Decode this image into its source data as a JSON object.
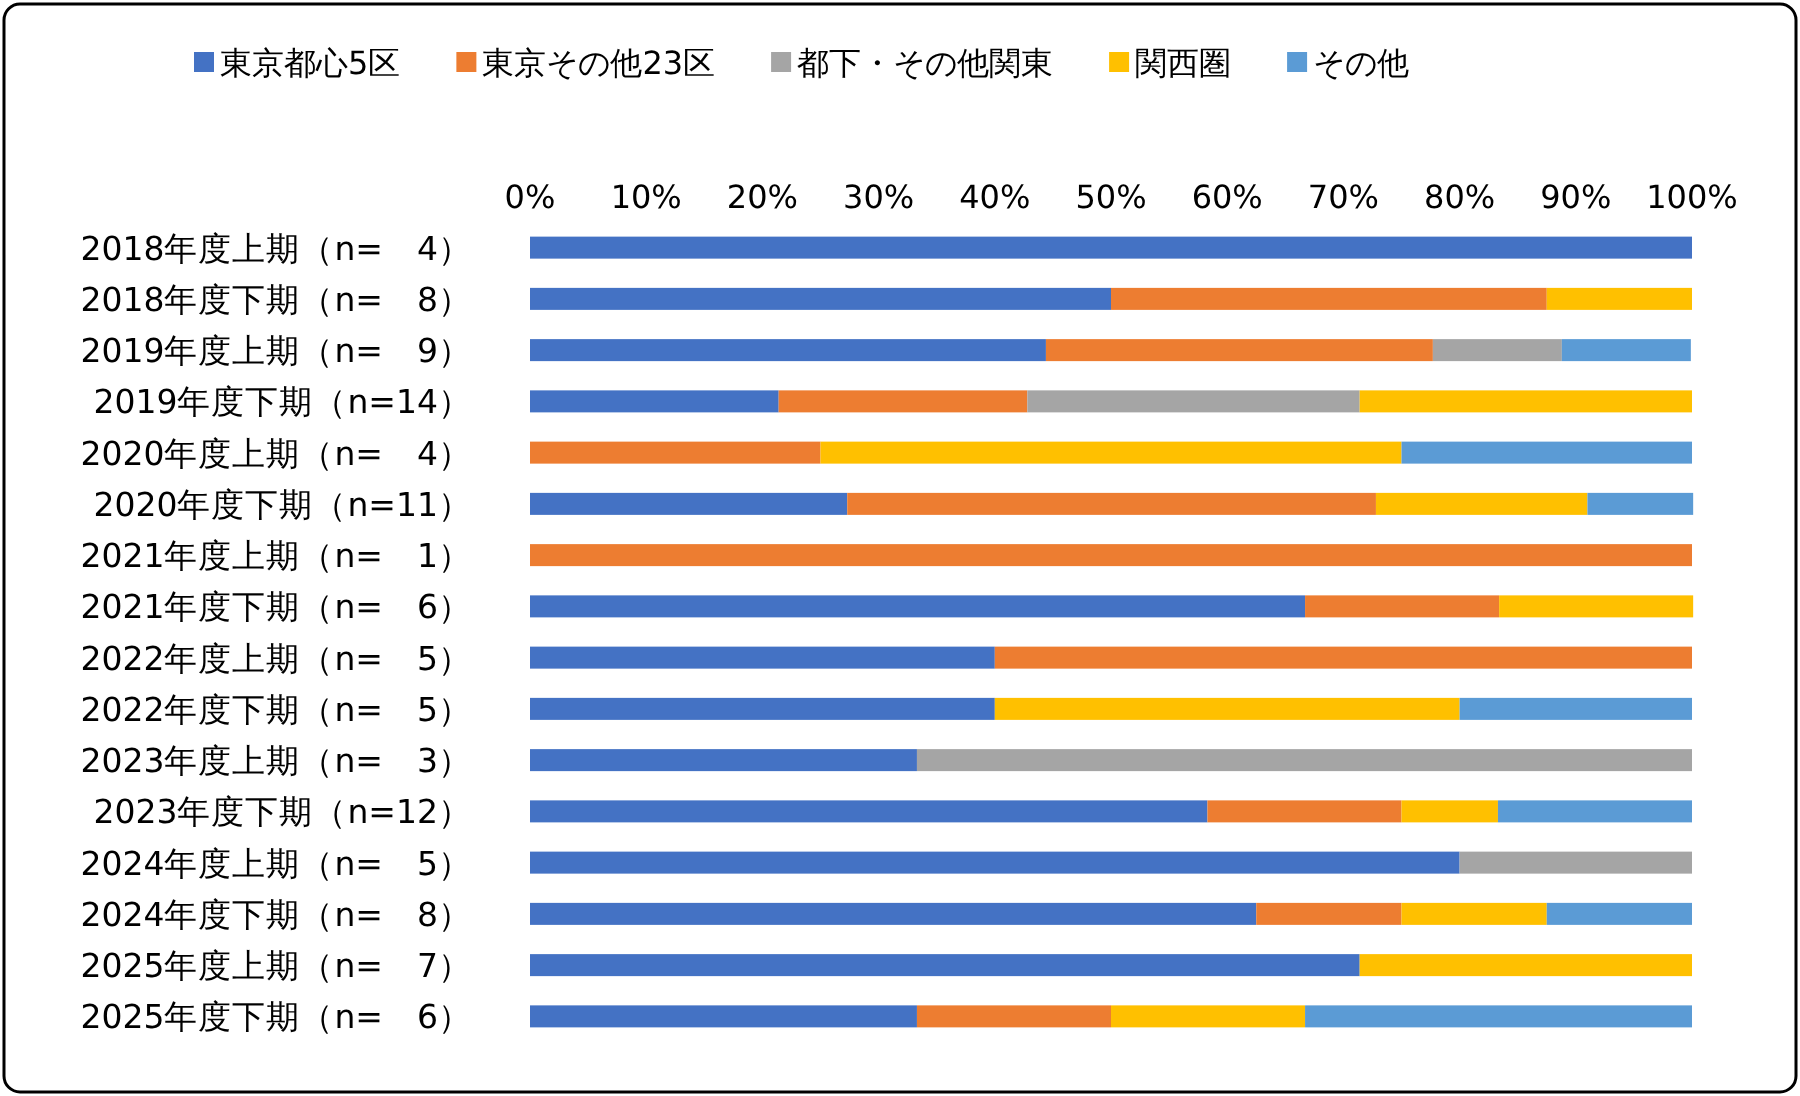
{
  "chart_data": {
    "type": "bar",
    "orientation": "horizontal",
    "stacked": true,
    "legend": "top",
    "categories": [
      "2018年度上期（n=　4）",
      "2018年度下期（n=　8）",
      "2019年度上期（n=　9）",
      "2019年度下期（n=14）",
      "2020年度上期（n=　4）",
      "2020年度下期（n=11）",
      "2021年度上期（n=　1）",
      "2021年度下期（n=　6）",
      "2022年度上期（n=　5）",
      "2022年度下期（n=　5）",
      "2023年度上期（n=　3）",
      "2023年度下期（n=12）",
      "2024年度上期（n=　5）",
      "2024年度下期（n=　8）",
      "2025年度上期（n=　7）",
      "2025年度下期（n=　6）"
    ],
    "xlim": [
      0,
      100
    ],
    "xticks": [
      {
        "value": 0,
        "label": "0%"
      },
      {
        "value": 10,
        "label": "10%"
      },
      {
        "value": 20,
        "label": "20%"
      },
      {
        "value": 30,
        "label": "30%"
      },
      {
        "value": 40,
        "label": "40%"
      },
      {
        "value": 50,
        "label": "50%"
      },
      {
        "value": 60,
        "label": "60%"
      },
      {
        "value": 70,
        "label": "70%"
      },
      {
        "value": 80,
        "label": "80%"
      },
      {
        "value": 90,
        "label": "90%"
      },
      {
        "value": 100,
        "label": "100%"
      }
    ],
    "series": [
      {
        "name": "東京都心5区",
        "color": "#4472c4",
        "values": [
          100,
          50,
          44.4,
          21.4,
          0,
          27.3,
          0,
          66.7,
          40,
          40,
          33.3,
          58.3,
          80,
          62.5,
          71.4,
          33.3
        ]
      },
      {
        "name": "東京その他23区",
        "color": "#ed7d31",
        "values": [
          0,
          37.5,
          33.3,
          21.4,
          25,
          45.5,
          100,
          16.7,
          60,
          0,
          0,
          16.7,
          0,
          12.5,
          0,
          16.7
        ]
      },
      {
        "name": "都下・その他関東",
        "color": "#a5a5a5",
        "values": [
          0,
          0,
          11.1,
          28.6,
          0,
          0,
          0,
          0,
          0,
          0,
          66.7,
          0,
          20,
          0,
          0,
          0
        ]
      },
      {
        "name": "関西圏",
        "color": "#ffc000",
        "values": [
          0,
          12.5,
          0,
          28.6,
          50,
          18.2,
          0,
          16.7,
          0,
          40,
          0,
          8.3,
          0,
          12.5,
          28.6,
          16.7
        ]
      },
      {
        "name": "その他",
        "color": "#5b9bd5",
        "values": [
          0,
          0,
          11.1,
          0,
          25,
          9.1,
          0,
          0,
          0,
          20,
          0,
          16.7,
          0,
          12.5,
          0,
          33.3
        ]
      }
    ]
  }
}
